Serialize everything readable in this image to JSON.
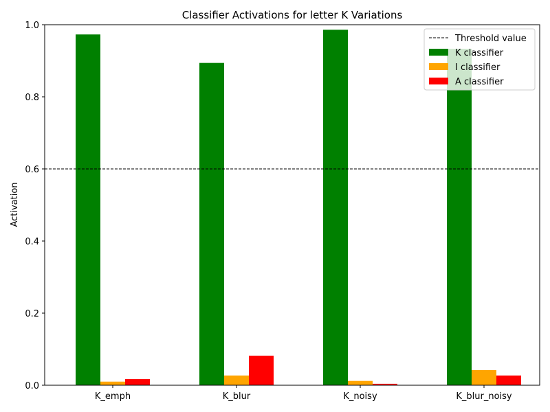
{
  "chart_data": {
    "type": "bar",
    "title": "Classifier Activations for letter K Variations",
    "xlabel": "",
    "ylabel": "Activation",
    "categories": [
      "K_emph",
      "K_blur",
      "K_noisy",
      "K_blur_noisy"
    ],
    "series": [
      {
        "name": "K classifier",
        "color": "#008000",
        "values": [
          0.973,
          0.894,
          0.986,
          0.933
        ]
      },
      {
        "name": "I classifier",
        "color": "#ffa500",
        "values": [
          0.01,
          0.027,
          0.012,
          0.042
        ]
      },
      {
        "name": "A classifier",
        "color": "#ff0000",
        "values": [
          0.017,
          0.082,
          0.004,
          0.027
        ]
      }
    ],
    "threshold": {
      "name": "Threshold value",
      "value": 0.6,
      "color": "#000000",
      "style": "dashed"
    },
    "ylim": [
      0,
      1.0
    ],
    "yticks": [
      "0.0",
      "0.2",
      "0.4",
      "0.6",
      "0.8",
      "1.0"
    ],
    "grid": false,
    "legend_position": "top-right"
  }
}
